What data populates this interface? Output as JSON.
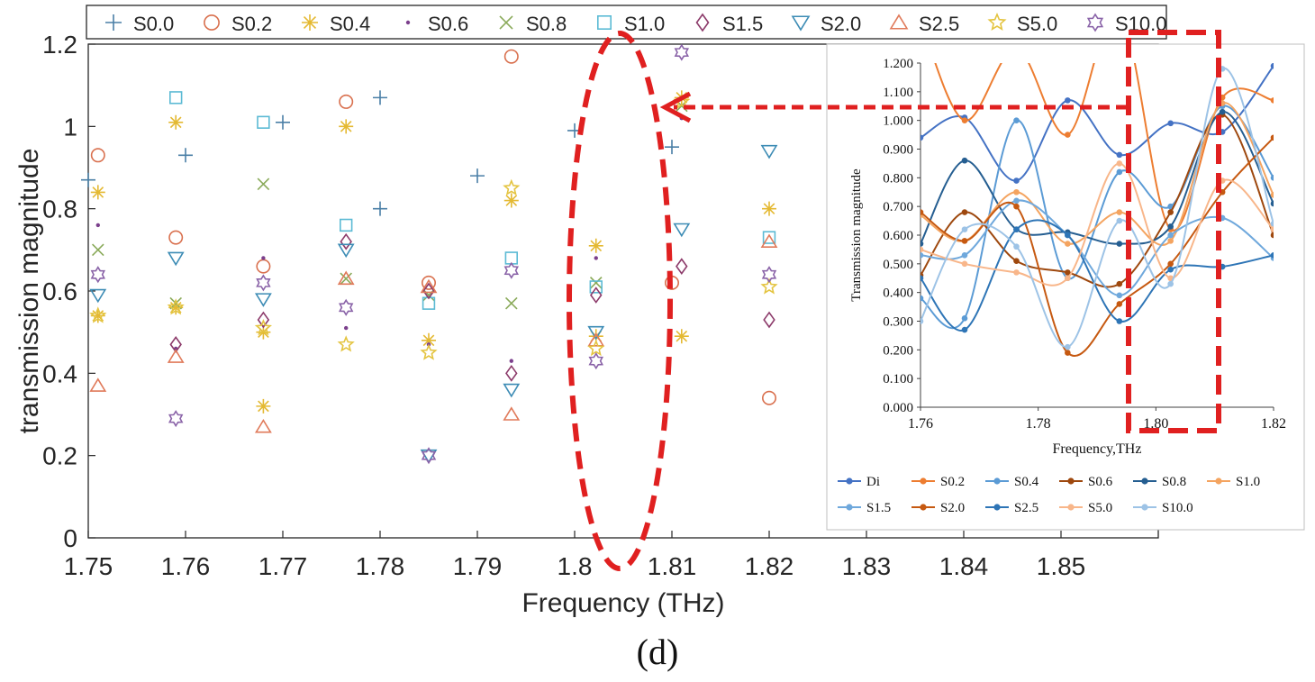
{
  "caption": "(d)",
  "chart_data": [
    {
      "type": "scatter",
      "xlabel": "Frequency (THz)",
      "ylabel": "transmission magnitude",
      "xlim": [
        1.75,
        1.86
      ],
      "ylim": [
        0,
        1.2
      ],
      "xticks": [
        "1.75",
        "1.76",
        "1.77",
        "1.78",
        "1.79",
        "1.8",
        "1.81",
        "1.82",
        "1.83",
        "1.84",
        "1.85"
      ],
      "yticks": [
        "0",
        "0.2",
        "0.4",
        "0.6",
        "0.8",
        "1",
        "1.2"
      ],
      "legend_position": "top",
      "series": [
        {
          "name": "S0.0",
          "marker": "plus",
          "color": "#4a7fa6",
          "points": [
            [
              1.75,
              0.87
            ],
            [
              1.76,
              0.93
            ],
            [
              1.77,
              1.01
            ],
            [
              1.78,
              1.07
            ],
            [
              1.78,
              0.8
            ],
            [
              1.79,
              0.88
            ],
            [
              1.8,
              0.99
            ],
            [
              1.81,
              0.95
            ]
          ]
        },
        {
          "name": "S0.2",
          "marker": "circle",
          "color": "#d9704e",
          "points": [
            [
              1.751,
              0.93
            ],
            [
              1.759,
              0.73
            ],
            [
              1.768,
              0.66
            ],
            [
              1.7765,
              1.06
            ],
            [
              1.785,
              0.62
            ],
            [
              1.7935,
              1.17
            ],
            [
              1.81,
              0.62
            ],
            [
              1.82,
              0.34
            ]
          ]
        },
        {
          "name": "S0.4",
          "marker": "asterisk",
          "color": "#e4b932",
          "points": [
            [
              1.751,
              0.84
            ],
            [
              1.751,
              0.54
            ],
            [
              1.759,
              1.01
            ],
            [
              1.759,
              0.56
            ],
            [
              1.768,
              0.32
            ],
            [
              1.768,
              0.5
            ],
            [
              1.7765,
              1.0
            ],
            [
              1.785,
              0.48
            ],
            [
              1.7935,
              0.82
            ],
            [
              1.8022,
              0.71
            ],
            [
              1.8022,
              0.49
            ],
            [
              1.811,
              1.07
            ],
            [
              1.811,
              0.49
            ],
            [
              1.82,
              0.8
            ]
          ]
        },
        {
          "name": "S0.6",
          "marker": "dot",
          "color": "#7b3f8c",
          "points": [
            [
              1.751,
              0.76
            ],
            [
              1.759,
              0.46
            ],
            [
              1.768,
              0.68
            ],
            [
              1.7765,
              0.51
            ],
            [
              1.785,
              0.47
            ],
            [
              1.7935,
              0.43
            ],
            [
              1.8022,
              0.68
            ],
            [
              1.811,
              1.02
            ]
          ]
        },
        {
          "name": "S0.8",
          "marker": "cross",
          "color": "#8aaa5a",
          "points": [
            [
              1.751,
              0.7
            ],
            [
              1.759,
              0.57
            ],
            [
              1.768,
              0.86
            ],
            [
              1.7765,
              0.63
            ],
            [
              1.785,
              0.59
            ],
            [
              1.7935,
              0.57
            ],
            [
              1.8022,
              0.62
            ],
            [
              1.811,
              1.05
            ]
          ]
        },
        {
          "name": "S1.0",
          "marker": "square",
          "color": "#5bbad4",
          "points": [
            [
              1.759,
              1.07
            ],
            [
              1.768,
              1.01
            ],
            [
              1.7765,
              0.76
            ],
            [
              1.785,
              0.57
            ],
            [
              1.7935,
              0.68
            ],
            [
              1.8022,
              0.61
            ],
            [
              1.82,
              0.73
            ]
          ]
        },
        {
          "name": "S1.5",
          "marker": "diamond",
          "color": "#8c3a6a",
          "points": [
            [
              1.759,
              0.47
            ],
            [
              1.768,
              0.53
            ],
            [
              1.7765,
              0.72
            ],
            [
              1.785,
              0.6
            ],
            [
              1.7935,
              0.4
            ],
            [
              1.8022,
              0.59
            ],
            [
              1.811,
              0.66
            ],
            [
              1.82,
              0.53
            ]
          ]
        },
        {
          "name": "S2.0",
          "marker": "triangle-down",
          "color": "#3d8cb5",
          "points": [
            [
              1.751,
              0.59
            ],
            [
              1.759,
              0.68
            ],
            [
              1.768,
              0.58
            ],
            [
              1.7765,
              0.7
            ],
            [
              1.785,
              0.2
            ],
            [
              1.7935,
              0.36
            ],
            [
              1.8022,
              0.5
            ],
            [
              1.811,
              0.75
            ],
            [
              1.82,
              0.94
            ]
          ]
        },
        {
          "name": "S2.5",
          "marker": "triangle-up",
          "color": "#e07a5a",
          "points": [
            [
              1.751,
              0.37
            ],
            [
              1.759,
              0.44
            ],
            [
              1.768,
              0.27
            ],
            [
              1.7765,
              0.63
            ],
            [
              1.785,
              0.61
            ],
            [
              1.7935,
              0.3
            ],
            [
              1.8022,
              0.48
            ],
            [
              1.82,
              0.72
            ]
          ]
        },
        {
          "name": "S5.0",
          "marker": "star",
          "color": "#e4c440",
          "points": [
            [
              1.751,
              0.54
            ],
            [
              1.759,
              0.56
            ],
            [
              1.768,
              0.51
            ],
            [
              1.7765,
              0.47
            ],
            [
              1.785,
              0.45
            ],
            [
              1.7935,
              0.85
            ],
            [
              1.8022,
              0.46
            ],
            [
              1.811,
              1.06
            ],
            [
              1.82,
              0.61
            ]
          ]
        },
        {
          "name": "S10.0",
          "marker": "hexagram",
          "color": "#8a63a8",
          "points": [
            [
              1.751,
              0.64
            ],
            [
              1.759,
              0.29
            ],
            [
              1.768,
              0.62
            ],
            [
              1.7765,
              0.56
            ],
            [
              1.785,
              0.2
            ],
            [
              1.7935,
              0.65
            ],
            [
              1.8022,
              0.43
            ],
            [
              1.811,
              1.18
            ],
            [
              1.82,
              0.64
            ]
          ]
        }
      ]
    },
    {
      "type": "line",
      "xlabel": "Frequency,THz",
      "ylabel": "Transmission magnitude",
      "xlim": [
        1.76,
        1.82
      ],
      "ylim": [
        0,
        1.2
      ],
      "xticks": [
        "1.76",
        "1.78",
        "1.80",
        "1.82"
      ],
      "yticks": [
        "0.000",
        "0.100",
        "0.200",
        "0.300",
        "0.400",
        "0.500",
        "0.600",
        "0.700",
        "0.800",
        "0.900",
        "1.000",
        "1.100",
        "1.200"
      ],
      "legend_position": "bottom",
      "x": [
        1.76,
        1.7675,
        1.7763,
        1.785,
        1.7938,
        1.8025,
        1.8113,
        1.82
      ],
      "series": [
        {
          "name": "Di",
          "color": "#4472c4",
          "values": [
            0.94,
            1.01,
            0.79,
            1.07,
            0.88,
            0.99,
            0.96,
            1.19
          ]
        },
        {
          "name": "S0.2",
          "color": "#ed7d31",
          "values": [
            1.35,
            1.0,
            1.25,
            0.95,
            1.38,
            0.62,
            1.08,
            1.07
          ]
        },
        {
          "name": "S0.4",
          "color": "#5b9bd5",
          "values": [
            0.38,
            0.31,
            1.0,
            0.45,
            0.82,
            0.7,
            1.05,
            0.8
          ]
        },
        {
          "name": "S0.6",
          "color": "#9e480e",
          "values": [
            0.46,
            0.68,
            0.51,
            0.47,
            0.43,
            0.68,
            1.02,
            0.6
          ]
        },
        {
          "name": "S0.8",
          "color": "#255e91",
          "values": [
            0.57,
            0.86,
            0.62,
            0.61,
            0.57,
            0.63,
            1.03,
            0.71
          ]
        },
        {
          "name": "S1.0",
          "color": "#f4a460",
          "values": [
            0.67,
            0.58,
            0.75,
            0.57,
            0.68,
            0.58,
            1.06,
            0.74
          ]
        },
        {
          "name": "S1.5",
          "color": "#6fa8dc",
          "values": [
            0.53,
            0.53,
            0.72,
            0.6,
            0.39,
            0.6,
            0.66,
            0.52
          ]
        },
        {
          "name": "S2.0",
          "color": "#c65911",
          "values": [
            0.68,
            0.58,
            0.7,
            0.19,
            0.36,
            0.5,
            0.75,
            0.94
          ]
        },
        {
          "name": "S2.5",
          "color": "#2e75b6",
          "values": [
            0.45,
            0.27,
            0.62,
            0.6,
            0.3,
            0.48,
            0.49,
            0.53
          ]
        },
        {
          "name": "S5.0",
          "color": "#f8b68a",
          "values": [
            0.55,
            0.5,
            0.47,
            0.45,
            0.85,
            0.45,
            0.79,
            0.62
          ]
        },
        {
          "name": "S10.0",
          "color": "#9dc3e6",
          "values": [
            0.3,
            0.62,
            0.56,
            0.21,
            0.65,
            0.43,
            1.18,
            0.64
          ]
        }
      ]
    }
  ]
}
